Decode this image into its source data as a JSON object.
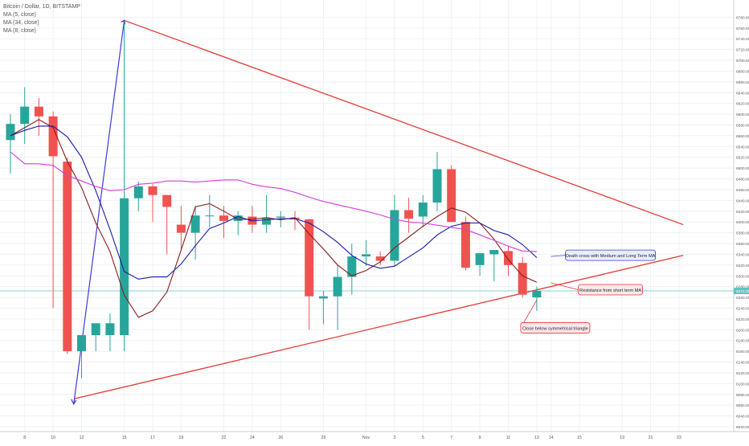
{
  "header": {
    "symbol_line": "Bitcoin / Dollar, 1D, BITSTAMP",
    "indicators": [
      "MA (5, close)",
      "MA (34, close)",
      "MA (8, close)"
    ]
  },
  "colors": {
    "up": "#26a69a",
    "down": "#ef5350",
    "trendline": "#e53935",
    "ma_fast": "#8b1a1a",
    "ma_medium": "#1a1aa6",
    "ma_long": "#d83ad8",
    "price_line": "#5fc5c0",
    "grid": "#eef1f6"
  },
  "chart_data": {
    "type": "candlestick",
    "y_axis": {
      "range": [
        6020,
        6800
      ],
      "ticks": [
        "6780.00",
        "6760.00",
        "6740.00",
        "6720.00",
        "6700.00",
        "6680.00",
        "6660.00",
        "6640.00",
        "6620.00",
        "6600.00",
        "6580.00",
        "6560.00",
        "6540.00",
        "6520.00",
        "6500.00",
        "6480.00",
        "6460.00",
        "6440.00",
        "6420.00",
        "6400.00",
        "6380.00",
        "6360.00",
        "6340.00",
        "6320.00",
        "6300.00",
        "6280.00",
        "6260.00",
        "6240.00",
        "6220.00",
        "6200.00",
        "6180.00",
        "6160.00",
        "6140.00",
        "6120.00",
        "6100.00",
        "6080.00",
        "6060.00",
        "6040.00",
        "6020.00"
      ]
    },
    "x_axis": {
      "tick_labels": [
        {
          "label": "8",
          "idx": 1
        },
        {
          "label": "10",
          "idx": 3
        },
        {
          "label": "12",
          "idx": 5
        },
        {
          "label": "15",
          "idx": 8
        },
        {
          "label": "17",
          "idx": 10
        },
        {
          "label": "19",
          "idx": 12
        },
        {
          "label": "22",
          "idx": 15
        },
        {
          "label": "24",
          "idx": 17
        },
        {
          "label": "26",
          "idx": 19
        },
        {
          "label": "29",
          "idx": 22
        },
        {
          "label": "Nov",
          "idx": 25
        },
        {
          "label": "3",
          "idx": 27
        },
        {
          "label": "5",
          "idx": 29
        },
        {
          "label": "7",
          "idx": 31
        },
        {
          "label": "9",
          "idx": 33
        },
        {
          "label": "11",
          "idx": 35
        },
        {
          "label": "13",
          "idx": 37
        },
        {
          "label": "14",
          "idx": 38
        },
        {
          "label": "15",
          "idx": 40
        },
        {
          "label": "19",
          "idx": 43
        },
        {
          "label": "21",
          "idx": 45
        },
        {
          "label": "23",
          "idx": 47
        }
      ]
    },
    "candles": [
      {
        "o": 6552,
        "h": 6600,
        "l": 6490,
        "c": 6582
      },
      {
        "o": 6582,
        "h": 6650,
        "l": 6545,
        "c": 6614
      },
      {
        "o": 6614,
        "h": 6630,
        "l": 6560,
        "c": 6596
      },
      {
        "o": 6596,
        "h": 6605,
        "l": 6240,
        "c": 6522
      },
      {
        "o": 6512,
        "h": 6520,
        "l": 6155,
        "c": 6160
      },
      {
        "o": 6160,
        "h": 6190,
        "l": 6110,
        "c": 6190
      },
      {
        "o": 6190,
        "h": 6210,
        "l": 6160,
        "c": 6212
      },
      {
        "o": 6190,
        "h": 6230,
        "l": 6160,
        "c": 6212
      },
      {
        "o": 6190,
        "h": 6770,
        "l": 6160,
        "c": 6444
      },
      {
        "o": 6444,
        "h": 6475,
        "l": 6420,
        "c": 6466
      },
      {
        "o": 6466,
        "h": 6470,
        "l": 6400,
        "c": 6450
      },
      {
        "o": 6450,
        "h": 6450,
        "l": 6340,
        "c": 6428
      },
      {
        "o": 6395,
        "h": 6430,
        "l": 6350,
        "c": 6380
      },
      {
        "o": 6380,
        "h": 6430,
        "l": 6330,
        "c": 6412
      },
      {
        "o": 6412,
        "h": 6450,
        "l": 6390,
        "c": 6412
      },
      {
        "o": 6412,
        "h": 6430,
        "l": 6370,
        "c": 6402
      },
      {
        "o": 6402,
        "h": 6420,
        "l": 6375,
        "c": 6412
      },
      {
        "o": 6410,
        "h": 6430,
        "l": 6380,
        "c": 6395
      },
      {
        "o": 6395,
        "h": 6450,
        "l": 6380,
        "c": 6408
      },
      {
        "o": 6408,
        "h": 6420,
        "l": 6390,
        "c": 6410
      },
      {
        "o": 6408,
        "h": 6420,
        "l": 6385,
        "c": 6405
      },
      {
        "o": 6405,
        "h": 6405,
        "l": 6200,
        "c": 6262
      },
      {
        "o": 6258,
        "h": 6272,
        "l": 6210,
        "c": 6262
      },
      {
        "o": 6262,
        "h": 6320,
        "l": 6200,
        "c": 6298
      },
      {
        "o": 6298,
        "h": 6360,
        "l": 6265,
        "c": 6336
      },
      {
        "o": 6336,
        "h": 6366,
        "l": 6318,
        "c": 6340
      },
      {
        "o": 6336,
        "h": 6345,
        "l": 6320,
        "c": 6328
      },
      {
        "o": 6328,
        "h": 6450,
        "l": 6318,
        "c": 6422
      },
      {
        "o": 6422,
        "h": 6445,
        "l": 6380,
        "c": 6406
      },
      {
        "o": 6410,
        "h": 6450,
        "l": 6390,
        "c": 6436
      },
      {
        "o": 6436,
        "h": 6530,
        "l": 6420,
        "c": 6498
      },
      {
        "o": 6498,
        "h": 6505,
        "l": 6400,
        "c": 6400
      },
      {
        "o": 6400,
        "h": 6410,
        "l": 6310,
        "c": 6315
      },
      {
        "o": 6320,
        "h": 6340,
        "l": 6300,
        "c": 6342
      },
      {
        "o": 6340,
        "h": 6345,
        "l": 6290,
        "c": 6348
      },
      {
        "o": 6346,
        "h": 6355,
        "l": 6300,
        "c": 6320
      },
      {
        "o": 6324,
        "h": 6335,
        "l": 6260,
        "c": 6265
      },
      {
        "o": 6260,
        "h": 6280,
        "l": 6235,
        "c": 6272
      }
    ],
    "moving_averages": [
      {
        "name": "MA (5, close)",
        "values": [
          6560,
          6575,
          6590,
          6575,
          6512,
          6464,
          6398,
          6345,
          6264,
          6223,
          6235,
          6270,
          6348,
          6428,
          6434,
          6420,
          6405,
          6405,
          6408,
          6404,
          6408,
          6378,
          6350,
          6320,
          6300,
          6310,
          6326,
          6352,
          6372,
          6392,
          6410,
          6426,
          6418,
          6398,
          6368,
          6330,
          6300,
          6288
        ]
      },
      {
        "name": "MA (8, close)",
        "values": [
          6560,
          6570,
          6578,
          6578,
          6558,
          6520,
          6458,
          6386,
          6308,
          6294,
          6298,
          6298,
          6322,
          6356,
          6388,
          6398,
          6410,
          6402,
          6404,
          6406,
          6406,
          6398,
          6382,
          6362,
          6338,
          6322,
          6314,
          6318,
          6335,
          6352,
          6376,
          6392,
          6398,
          6398,
          6384,
          6376,
          6358,
          6334
        ]
      },
      {
        "name": "MA (34, close)",
        "values": [
          6530,
          6508,
          6508,
          6505,
          6486,
          6476,
          6466,
          6458,
          6460,
          6470,
          6472,
          6476,
          6476,
          6474,
          6476,
          6478,
          6478,
          6470,
          6465,
          6462,
          6455,
          6446,
          6438,
          6432,
          6426,
          6420,
          6413,
          6405,
          6400,
          6398,
          6394,
          6390,
          6386,
          6376,
          6366,
          6355,
          6346,
          6345
        ]
      }
    ],
    "trendlines": [
      {
        "from": {
          "idx": 4.5,
          "v": 6072
        },
        "to": {
          "idx": 47.3,
          "v": 6338
        }
      },
      {
        "from": {
          "idx": 8.0,
          "v": 6774
        },
        "to": {
          "idx": 47.3,
          "v": 6395
        }
      }
    ],
    "move_line": {
      "from": {
        "idx": 4.45,
        "v": 6062
      },
      "to": {
        "idx": 8.0,
        "v": 6774
      }
    },
    "last_price": {
      "value": 6272,
      "label": "6272.30"
    },
    "annotations": [
      {
        "text": "Death cross with Medium and Long Term MA",
        "box": "blue",
        "anchor": {
          "idx": 38.0,
          "v": 6336
        }
      },
      {
        "text": "Resistance from short term MA",
        "box": "red",
        "anchor": {
          "idx": 38.0,
          "v": 6287
        }
      },
      {
        "text": "Close below symmetrical triangle",
        "box": "red",
        "anchor": {
          "idx": 37.0,
          "v": 6255
        }
      }
    ]
  }
}
